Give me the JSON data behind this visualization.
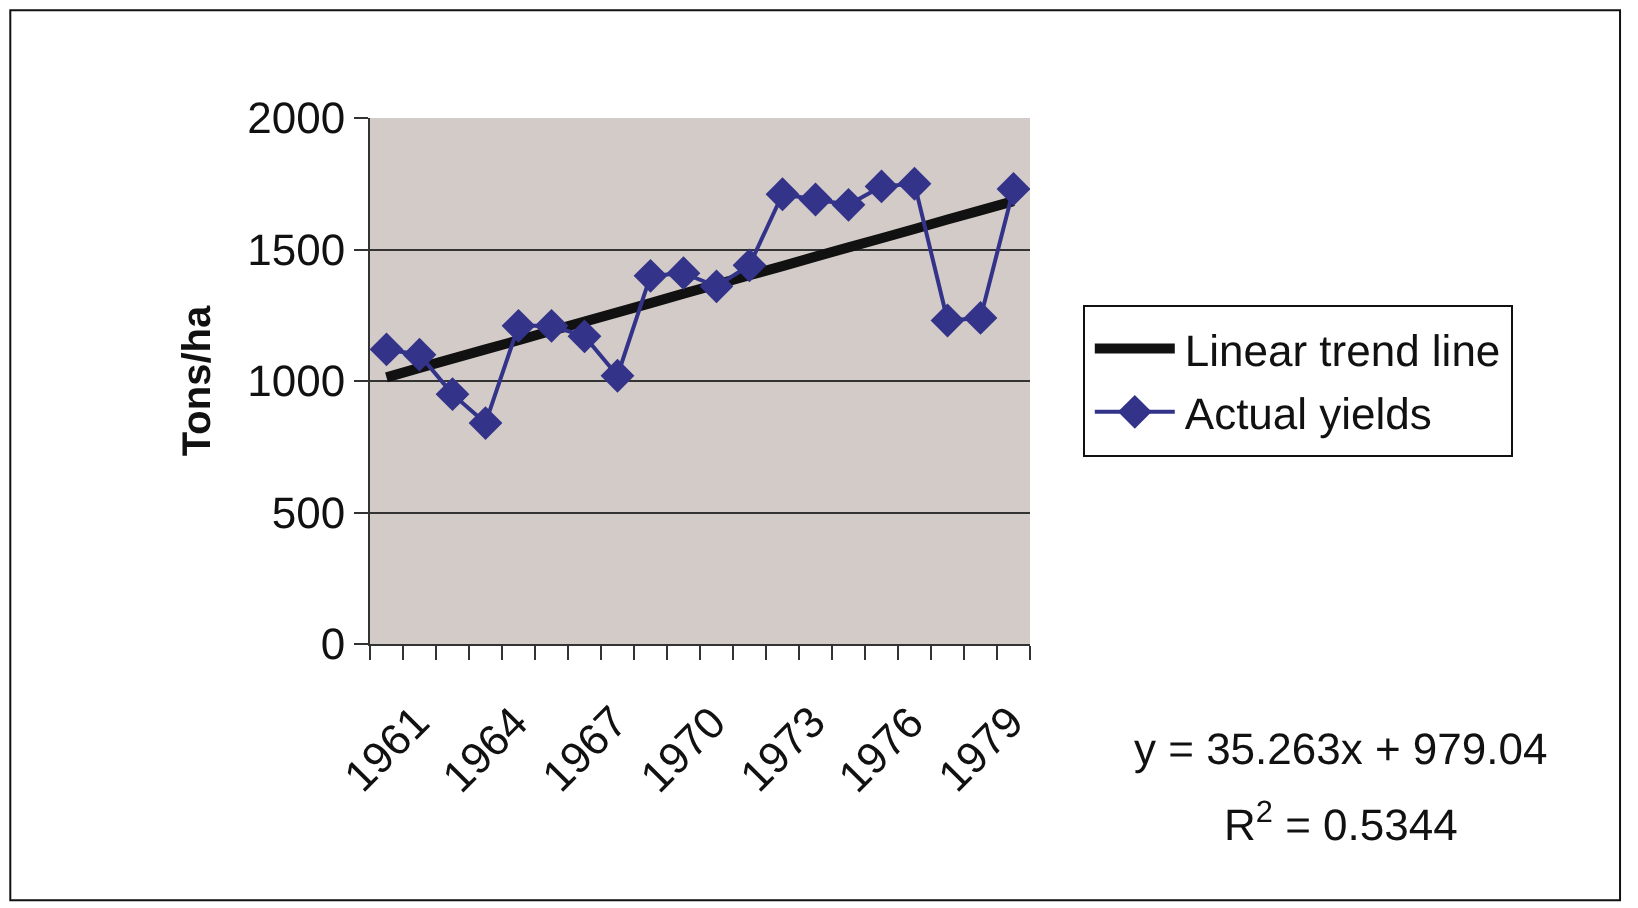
{
  "chart_data": {
    "type": "line",
    "ylabel": "Tons/ha",
    "categories": [
      "1961",
      null,
      null,
      "1964",
      null,
      null,
      "1967",
      null,
      null,
      "1970",
      null,
      null,
      "1973",
      null,
      null,
      "1976",
      null,
      null,
      "1979",
      null
    ],
    "series": [
      {
        "name": "Actual yields",
        "color": "#33338a",
        "marker": "diamond",
        "values": [
          1120,
          1100,
          950,
          840,
          1210,
          1210,
          1170,
          1020,
          1400,
          1410,
          1360,
          1440,
          1710,
          1690,
          1670,
          1740,
          1750,
          1230,
          1240,
          1730
        ]
      },
      {
        "name": "Linear trend line",
        "color": "#111111",
        "marker": "none",
        "values": [
          1014,
          1050,
          1085,
          1120,
          1155,
          1191,
          1226,
          1261,
          1296,
          1332,
          1367,
          1402,
          1437,
          1473,
          1508,
          1543,
          1578,
          1614,
          1649,
          1684
        ]
      }
    ],
    "ylim": [
      0,
      2000
    ],
    "yticks": [
      0,
      500,
      1000,
      1500,
      2000
    ],
    "grid": "y",
    "legend": "right",
    "annotations": [
      "y = 35.263x + 979.04",
      "R$^{2}$ = 0.5344"
    ]
  }
}
